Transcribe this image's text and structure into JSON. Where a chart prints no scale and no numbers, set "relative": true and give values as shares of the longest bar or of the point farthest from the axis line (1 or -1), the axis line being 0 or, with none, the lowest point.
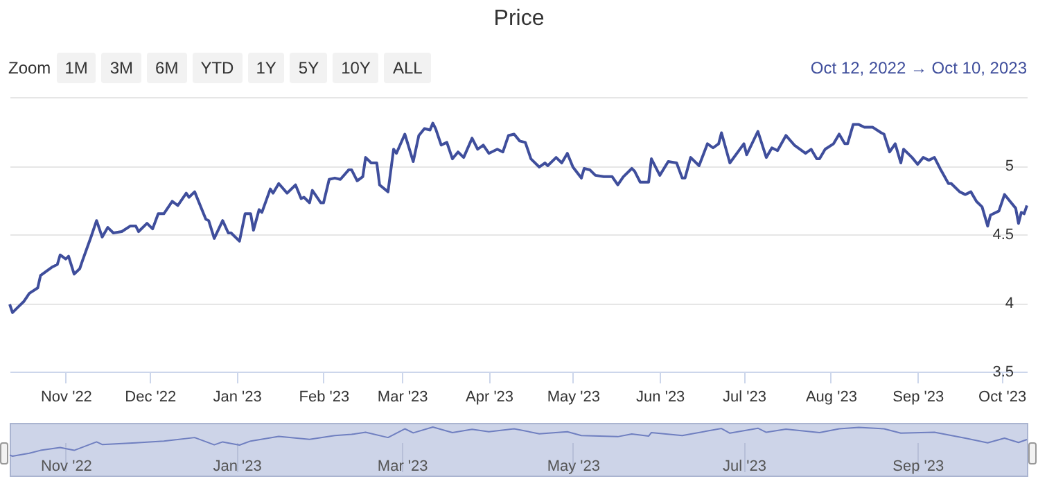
{
  "chart_data": [
    {
      "type": "line",
      "title": "Price",
      "annotations": [
        "Zoom",
        "1M",
        "3M",
        "6M",
        "YTD",
        "1Y",
        "5Y",
        "10Y",
        "ALL",
        "Oct 12, 2022 → Oct 10, 2023"
      ],
      "x": [
        "2022-10-12",
        "2022-10-13",
        "2022-10-15",
        "2022-10-17",
        "2022-10-19",
        "2022-10-22",
        "2022-10-23",
        "2022-10-27",
        "2022-10-29",
        "2022-10-30",
        "2022-11-01",
        "2022-11-02",
        "2022-11-04",
        "2022-11-06",
        "2022-11-07",
        "2022-11-10",
        "2022-11-12",
        "2022-11-14",
        "2022-11-16",
        "2022-11-18",
        "2022-11-21",
        "2022-11-24",
        "2022-11-26",
        "2022-11-27",
        "2022-11-30",
        "2022-12-02",
        "2022-12-04",
        "2022-12-06",
        "2022-12-09",
        "2022-12-11",
        "2022-12-14",
        "2022-12-15",
        "2022-12-17",
        "2022-12-21",
        "2022-12-22",
        "2022-12-24",
        "2022-12-27",
        "2022-12-29",
        "2022-12-30",
        "2023-01-02",
        "2023-01-04",
        "2023-01-06",
        "2023-01-07",
        "2023-01-09",
        "2023-01-10",
        "2023-01-13",
        "2023-01-14",
        "2023-01-16",
        "2023-01-19",
        "2023-01-22",
        "2023-01-24",
        "2023-01-25",
        "2023-01-27",
        "2023-01-28",
        "2023-01-31",
        "2023-02-01",
        "2023-02-03",
        "2023-02-05",
        "2023-02-07",
        "2023-02-10",
        "2023-02-11",
        "2023-02-13",
        "2023-02-15",
        "2023-02-16",
        "2023-02-18",
        "2023-02-20",
        "2023-02-21",
        "2023-02-24",
        "2023-02-26",
        "2023-02-27",
        "2023-03-02",
        "2023-03-05",
        "2023-03-07",
        "2023-03-09",
        "2023-03-11",
        "2023-03-12",
        "2023-03-13",
        "2023-03-15",
        "2023-03-17",
        "2023-03-19",
        "2023-03-21",
        "2023-03-23",
        "2023-03-26",
        "2023-03-28",
        "2023-03-30",
        "2023-04-01",
        "2023-04-04",
        "2023-04-06",
        "2023-04-08",
        "2023-04-10",
        "2023-04-12",
        "2023-04-14",
        "2023-04-16",
        "2023-04-19",
        "2023-04-21",
        "2023-04-22",
        "2023-04-25",
        "2023-04-27",
        "2023-04-29",
        "2023-05-01",
        "2023-05-04",
        "2023-05-05",
        "2023-05-07",
        "2023-05-09",
        "2023-05-12",
        "2023-05-15",
        "2023-05-17",
        "2023-05-19",
        "2023-05-22",
        "2023-05-23",
        "2023-05-25",
        "2023-05-28",
        "2023-05-29",
        "2023-06-01",
        "2023-06-04",
        "2023-06-07",
        "2023-06-09",
        "2023-06-10",
        "2023-06-12",
        "2023-06-15",
        "2023-06-18",
        "2023-06-20",
        "2023-06-22",
        "2023-06-23",
        "2023-06-26",
        "2023-07-01",
        "2023-07-02",
        "2023-07-06",
        "2023-07-09",
        "2023-07-11",
        "2023-07-13",
        "2023-07-16",
        "2023-07-19",
        "2023-07-23",
        "2023-07-25",
        "2023-07-27",
        "2023-07-28",
        "2023-07-30",
        "2023-08-02",
        "2023-08-04",
        "2023-08-06",
        "2023-08-07",
        "2023-08-09",
        "2023-08-11",
        "2023-08-13",
        "2023-08-16",
        "2023-08-19",
        "2023-08-20",
        "2023-08-22",
        "2023-08-24",
        "2023-08-26",
        "2023-08-27",
        "2023-08-30",
        "2023-09-01",
        "2023-09-03",
        "2023-09-05",
        "2023-09-07",
        "2023-09-09",
        "2023-09-12",
        "2023-09-13",
        "2023-09-16",
        "2023-09-18",
        "2023-09-20",
        "2023-09-22",
        "2023-09-24",
        "2023-09-26",
        "2023-09-27",
        "2023-09-30",
        "2023-10-02",
        "2023-10-04",
        "2023-10-06",
        "2023-10-07",
        "2023-10-08",
        "2023-10-09",
        "2023-10-10"
      ],
      "series": [
        {
          "color": "#3f4e9c",
          "values": [
            3.99,
            3.93,
            3.97,
            4.01,
            4.07,
            4.11,
            4.2,
            4.26,
            4.28,
            4.35,
            4.32,
            4.34,
            4.21,
            4.25,
            4.31,
            4.48,
            4.6,
            4.48,
            4.55,
            4.51,
            4.52,
            4.56,
            4.56,
            4.52,
            4.58,
            4.54,
            4.65,
            4.65,
            4.74,
            4.71,
            4.8,
            4.77,
            4.81,
            4.61,
            4.6,
            4.47,
            4.6,
            4.51,
            4.51,
            4.45,
            4.65,
            4.65,
            4.53,
            4.68,
            4.66,
            4.83,
            4.8,
            4.87,
            4.8,
            4.86,
            4.76,
            4.77,
            4.73,
            4.82,
            4.73,
            4.73,
            4.9,
            4.91,
            4.9,
            4.97,
            4.97,
            4.89,
            4.92,
            5.06,
            5.02,
            5.02,
            4.86,
            4.81,
            5.12,
            5.09,
            5.23,
            5.03,
            5.22,
            5.27,
            5.26,
            5.31,
            5.27,
            5.15,
            5.17,
            5.05,
            5.1,
            5.06,
            5.2,
            5.12,
            5.15,
            5.09,
            5.12,
            5.1,
            5.22,
            5.23,
            5.18,
            5.17,
            5.05,
            4.99,
            5.02,
            5.0,
            5.06,
            5.02,
            5.09,
            4.99,
            4.91,
            4.98,
            4.97,
            4.93,
            4.92,
            4.92,
            4.86,
            4.92,
            4.98,
            4.96,
            4.88,
            4.88,
            5.05,
            4.93,
            5.03,
            5.02,
            4.91,
            4.91,
            5.06,
            5.0,
            5.16,
            5.13,
            5.16,
            5.24,
            5.02,
            5.16,
            5.08,
            5.25,
            5.06,
            5.13,
            5.11,
            5.22,
            5.15,
            5.09,
            5.12,
            5.05,
            5.05,
            5.12,
            5.16,
            5.23,
            5.16,
            5.16,
            5.3,
            5.3,
            5.28,
            5.28,
            5.24,
            5.23,
            5.1,
            5.16,
            5.02,
            5.12,
            5.06,
            5.01,
            5.06,
            5.04,
            5.06,
            4.98,
            4.87,
            4.87,
            4.81,
            4.79,
            4.81,
            4.74,
            4.7,
            4.56,
            4.64,
            4.67,
            4.79,
            4.74,
            4.69,
            4.58,
            4.66,
            4.65,
            4.71
          ]
        }
      ],
      "xlim": [
        "2022-10-12",
        "2023-10-10"
      ],
      "xticks": [
        {
          "value": "2022-11-01",
          "label": "Nov '22"
        },
        {
          "value": "2022-12-01",
          "label": "Dec '22"
        },
        {
          "value": "2023-01-01",
          "label": "Jan '23"
        },
        {
          "value": "2023-02-01",
          "label": "Feb '23"
        },
        {
          "value": "2023-03-01",
          "label": "Mar '23"
        },
        {
          "value": "2023-04-01",
          "label": "Apr '23"
        },
        {
          "value": "2023-05-01",
          "label": "May '23"
        },
        {
          "value": "2023-06-01",
          "label": "Jun '23"
        },
        {
          "value": "2023-07-01",
          "label": "Jul '23"
        },
        {
          "value": "2023-08-01",
          "label": "Aug '23"
        },
        {
          "value": "2023-09-01",
          "label": "Sep '23"
        },
        {
          "value": "2023-10-01",
          "label": "Oct '23"
        }
      ],
      "ylim": [
        3.5,
        5.5
      ],
      "yticks": [
        3.5,
        4,
        4.5,
        5,
        {
          "value": 5.5,
          "label": null
        }
      ],
      "grid": "y"
    },
    {
      "type": "line",
      "relative": true,
      "x": [
        "2022-10-12",
        "2022-10-13",
        "2022-10-19",
        "2022-10-23",
        "2022-10-30",
        "2022-11-04",
        "2022-11-12",
        "2022-11-14",
        "2022-11-26",
        "2022-12-06",
        "2022-12-17",
        "2022-12-24",
        "2022-12-27",
        "2023-01-02",
        "2023-01-06",
        "2023-01-16",
        "2023-01-27",
        "2023-02-05",
        "2023-02-11",
        "2023-02-16",
        "2023-02-24",
        "2023-03-02",
        "2023-03-05",
        "2023-03-12",
        "2023-03-19",
        "2023-03-26",
        "2023-04-01",
        "2023-04-10",
        "2023-04-19",
        "2023-04-29",
        "2023-05-04",
        "2023-05-17",
        "2023-05-22",
        "2023-05-28",
        "2023-05-29",
        "2023-06-09",
        "2023-06-23",
        "2023-06-26",
        "2023-07-06",
        "2023-07-09",
        "2023-07-16",
        "2023-07-28",
        "2023-08-04",
        "2023-08-11",
        "2023-08-20",
        "2023-08-26",
        "2023-09-07",
        "2023-09-18",
        "2023-09-26",
        "2023-10-02",
        "2023-10-07",
        "2023-10-10"
      ],
      "series": [
        {
          "color": "#6f7fc0",
          "values": [
            0.04,
            0,
            0.1,
            0.2,
            0.3,
            0.2,
            0.49,
            0.4,
            0.46,
            0.52,
            0.64,
            0.39,
            0.49,
            0.38,
            0.52,
            0.68,
            0.58,
            0.71,
            0.75,
            0.82,
            0.64,
            0.94,
            0.8,
            1,
            0.81,
            0.92,
            0.84,
            0.94,
            0.77,
            0.84,
            0.71,
            0.67,
            0.76,
            0.69,
            0.81,
            0.71,
            0.95,
            0.79,
            0.96,
            0.82,
            0.93,
            0.81,
            0.94,
            0.99,
            0.94,
            0.79,
            0.82,
            0.62,
            0.46,
            0.62,
            0.47,
            0.57
          ]
        }
      ],
      "xlim": [
        "2022-10-12",
        "2023-10-10"
      ],
      "xticks": [
        {
          "value": "2022-11-01",
          "label": "Nov '22"
        },
        {
          "value": "2023-01-01",
          "label": "Jan '23"
        },
        {
          "value": "2023-03-01",
          "label": "Mar '23"
        },
        {
          "value": "2023-05-01",
          "label": "May '23"
        },
        {
          "value": "2023-07-01",
          "label": "Jul '23"
        },
        {
          "value": "2023-09-01",
          "label": "Sep '23"
        }
      ],
      "grid": "x"
    }
  ]
}
